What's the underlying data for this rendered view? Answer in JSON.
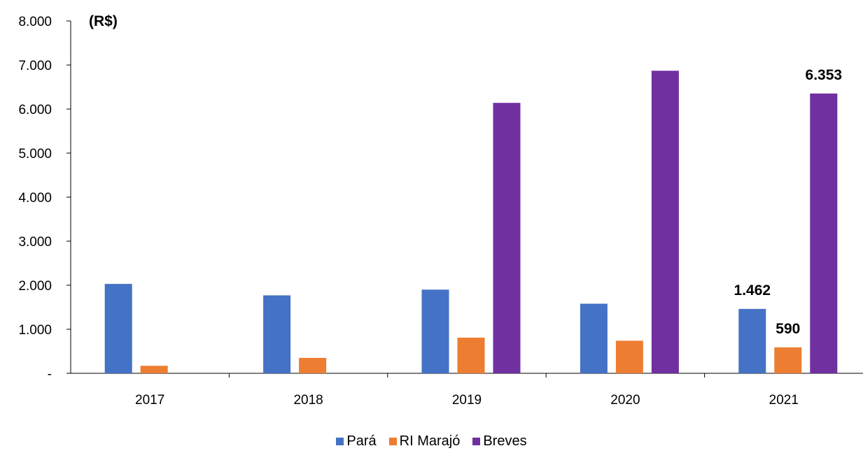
{
  "chart_data": {
    "type": "bar",
    "unit_label": "(R$)",
    "categories": [
      "2017",
      "2018",
      "2019",
      "2020",
      "2021"
    ],
    "series": [
      {
        "name": "Pará",
        "color": "#4472C4",
        "values": [
          2030,
          1770,
          1900,
          1580,
          1462
        ]
      },
      {
        "name": "RI Marajó",
        "color": "#ED7D31",
        "values": [
          170,
          350,
          810,
          740,
          590
        ]
      },
      {
        "name": "Breves",
        "color": "#7030A0",
        "values": [
          null,
          null,
          6140,
          6870,
          6353
        ]
      }
    ],
    "data_labels": [
      {
        "series": 0,
        "category": 4,
        "text": "1.462"
      },
      {
        "series": 1,
        "category": 4,
        "text": "590"
      },
      {
        "series": 2,
        "category": 4,
        "text": "6.353"
      }
    ],
    "ylim": [
      0,
      8000
    ],
    "y_ticks": [
      {
        "value": 0,
        "label": "-"
      },
      {
        "value": 1000,
        "label": "1.000"
      },
      {
        "value": 2000,
        "label": "2.000"
      },
      {
        "value": 3000,
        "label": "3.000"
      },
      {
        "value": 4000,
        "label": "4.000"
      },
      {
        "value": 5000,
        "label": "5.000"
      },
      {
        "value": 6000,
        "label": "6.000"
      },
      {
        "value": 7000,
        "label": "7.000"
      },
      {
        "value": 8000,
        "label": "8.000"
      }
    ],
    "grid": false,
    "legend_position": "bottom-center"
  }
}
